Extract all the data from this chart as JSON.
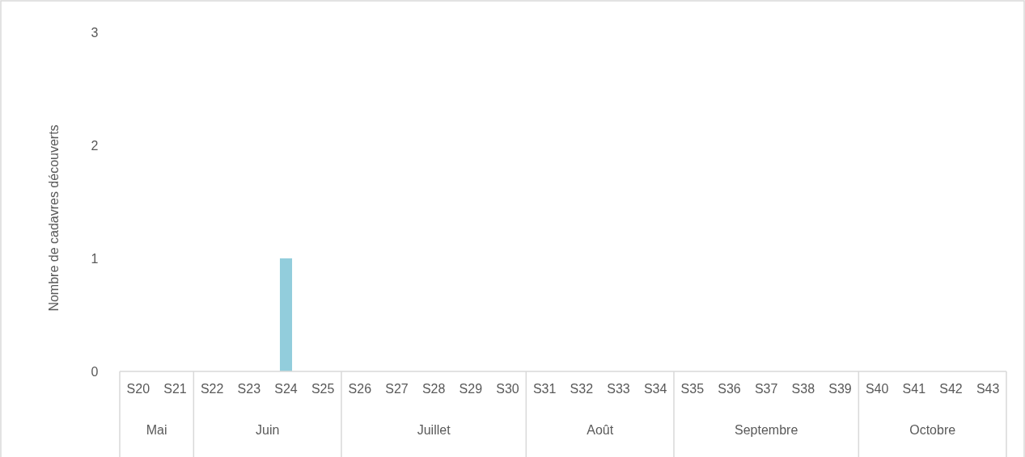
{
  "chart_data": {
    "type": "bar",
    "ylabel": "Nombre de cadavres découverts",
    "categories": [
      "S20",
      "S21",
      "S22",
      "S23",
      "S24",
      "S25",
      "S26",
      "S27",
      "S28",
      "S29",
      "S30",
      "S31",
      "S32",
      "S33",
      "S34",
      "S35",
      "S36",
      "S37",
      "S38",
      "S39",
      "S40",
      "S41",
      "S42",
      "S43"
    ],
    "values": [
      0,
      0,
      0,
      0,
      1,
      0,
      0,
      0,
      0,
      0,
      0,
      0,
      0,
      0,
      0,
      0,
      0,
      0,
      0,
      0,
      0,
      0,
      0,
      0
    ],
    "color": "#92cddc",
    "ylim": [
      0,
      3
    ],
    "yticks": [
      0,
      1,
      2,
      3
    ],
    "grid": false,
    "legend": false,
    "annotations": [
      "Mai",
      "Juin",
      "Juillet",
      "Août",
      "Septembre",
      "Octobre"
    ]
  }
}
